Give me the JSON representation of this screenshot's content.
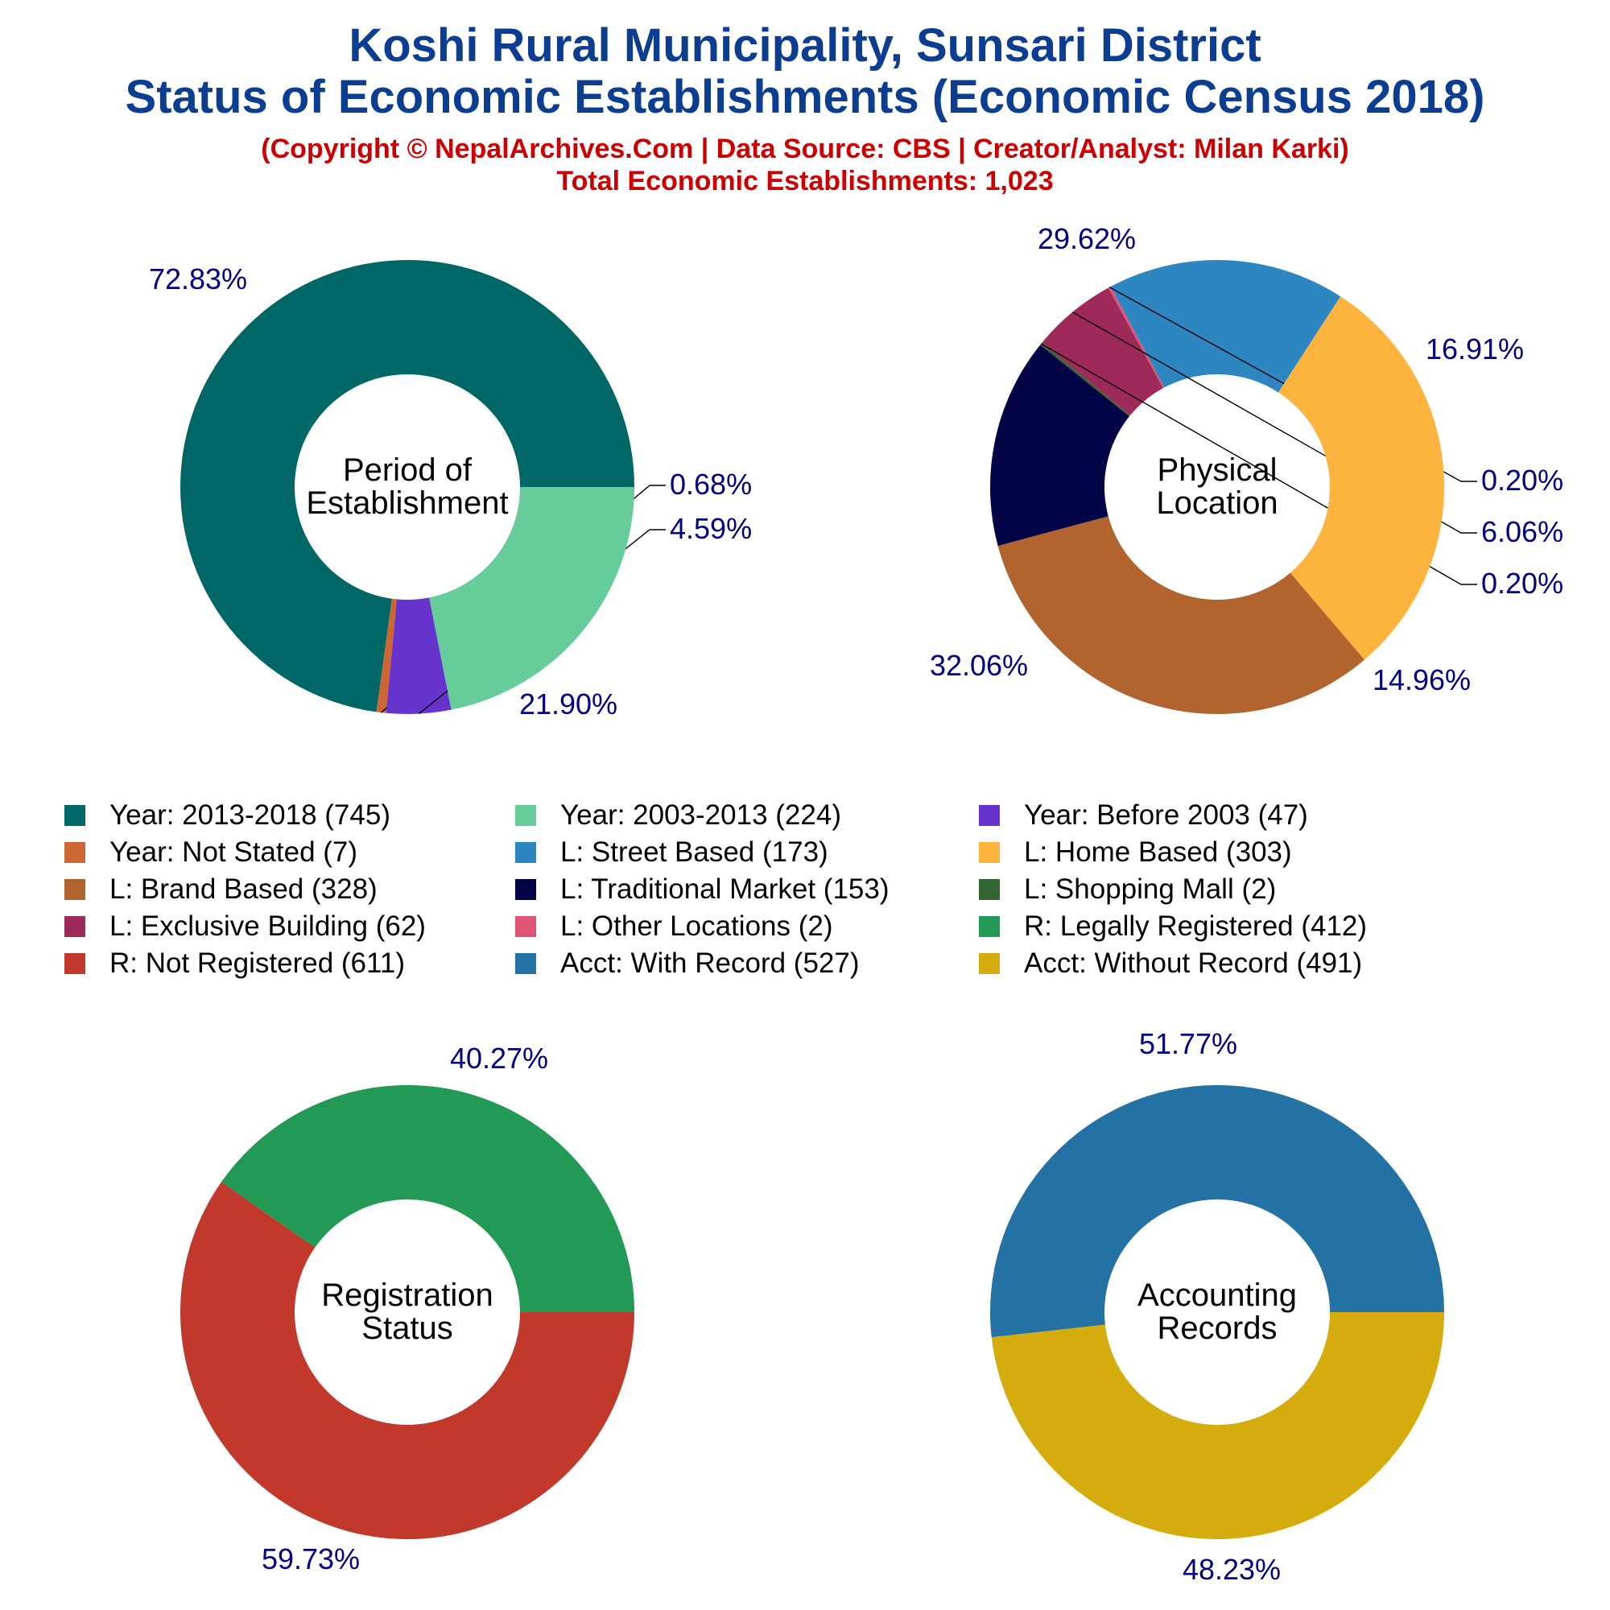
{
  "title_line1": "Koshi Rural Municipality, Sunsari District",
  "title_line2": "Status of Economic Establishments (Economic Census 2018)",
  "subtitle_line1": "(Copyright © NepalArchives.Com | Data Source: CBS | Creator/Analyst: Milan Karki)",
  "subtitle_line2": "Total Economic Establishments: 1,023",
  "legend": [
    {
      "label": "Year: 2013-2018 (745)",
      "color": "#006666"
    },
    {
      "label": "Year: 2003-2013 (224)",
      "color": "#66cc99"
    },
    {
      "label": "Year: Before 2003 (47)",
      "color": "#6633cc"
    },
    {
      "label": "Year: Not Stated (7)",
      "color": "#cc6633"
    },
    {
      "label": "L: Street Based (173)",
      "color": "#2e86c1"
    },
    {
      "label": "L: Home Based (303)",
      "color": "#fdb43e"
    },
    {
      "label": "L: Brand Based (328)",
      "color": "#b2642e"
    },
    {
      "label": "L: Traditional Market (153)",
      "color": "#020445"
    },
    {
      "label": "L: Shopping Mall (2)",
      "color": "#336633"
    },
    {
      "label": "L: Exclusive Building (62)",
      "color": "#9e2a5a"
    },
    {
      "label": "L: Other Locations (2)",
      "color": "#e05575"
    },
    {
      "label": "R: Legally Registered (412)",
      "color": "#229954"
    },
    {
      "label": "R: Not Registered (611)",
      "color": "#c0392b"
    },
    {
      "label": "Acct: With Record (527)",
      "color": "#2471a3"
    },
    {
      "label": "Acct: Without Record (491)",
      "color": "#d4ac0d"
    }
  ],
  "chart_data": [
    {
      "type": "pie",
      "title": "Period of Establishment",
      "center_lines": [
        "Period of",
        "Establishment"
      ],
      "slices": [
        {
          "name": "Year: 2013-2018",
          "value": 745,
          "label": "72.83%",
          "color": "#006666"
        },
        {
          "name": "Year: Not Stated",
          "value": 7,
          "label": "0.68%",
          "color": "#cc6633"
        },
        {
          "name": "Year: Before 2003",
          "value": 47,
          "label": "4.59%",
          "color": "#6633cc"
        },
        {
          "name": "Year: 2003-2013",
          "value": 224,
          "label": "21.90%",
          "color": "#66cc99"
        }
      ]
    },
    {
      "type": "pie",
      "title": "Physical Location",
      "center_lines": [
        "Physical",
        "Location"
      ],
      "slices": [
        {
          "name": "L: Street Based",
          "value": 173,
          "label": "16.91%",
          "color": "#2e86c1"
        },
        {
          "name": "L: Other Locations",
          "value": 2,
          "label": "0.20%",
          "color": "#e05575"
        },
        {
          "name": "L: Exclusive Building",
          "value": 62,
          "label": "6.06%",
          "color": "#9e2a5a"
        },
        {
          "name": "L: Shopping Mall",
          "value": 2,
          "label": "0.20%",
          "color": "#336633"
        },
        {
          "name": "L: Traditional Market",
          "value": 153,
          "label": "14.96%",
          "color": "#020445"
        },
        {
          "name": "L: Brand Based",
          "value": 328,
          "label": "32.06%",
          "color": "#b2642e"
        },
        {
          "name": "L: Home Based",
          "value": 303,
          "label": "29.62%",
          "color": "#fdb43e"
        }
      ]
    },
    {
      "type": "pie",
      "title": "Registration Status",
      "center_lines": [
        "Registration",
        "Status"
      ],
      "slices": [
        {
          "name": "R: Legally Registered",
          "value": 412,
          "label": "40.27%",
          "color": "#229954"
        },
        {
          "name": "R: Not Registered",
          "value": 611,
          "label": "59.73%",
          "color": "#c0392b"
        }
      ]
    },
    {
      "type": "pie",
      "title": "Accounting Records",
      "center_lines": [
        "Accounting",
        "Records"
      ],
      "slices": [
        {
          "name": "Acct: With Record",
          "value": 527,
          "label": "51.77%",
          "color": "#2471a3"
        },
        {
          "name": "Acct: Without Record",
          "value": 491,
          "label": "48.23%",
          "color": "#d4ac0d"
        }
      ]
    }
  ]
}
